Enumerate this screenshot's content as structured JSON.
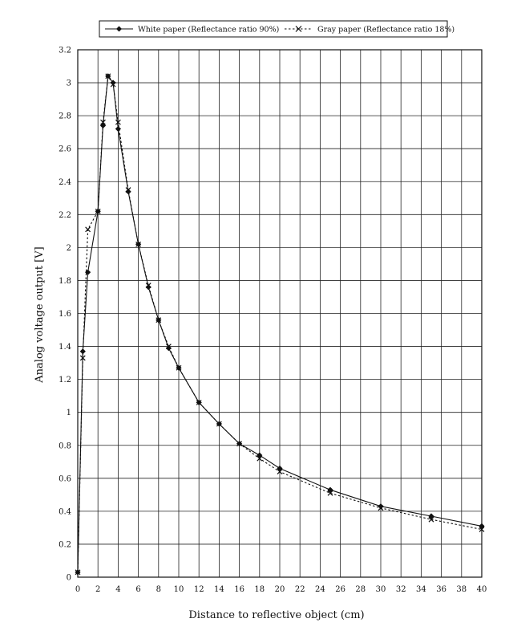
{
  "chart_data": {
    "type": "line",
    "title": "",
    "xlabel": "Distance to reflective object   (cm)",
    "ylabel": "Analog voltage output [V]",
    "xlim": [
      0,
      40
    ],
    "ylim": [
      0,
      3.2
    ],
    "x_ticks": [
      0,
      2,
      4,
      6,
      8,
      10,
      12,
      14,
      16,
      18,
      20,
      22,
      24,
      26,
      28,
      30,
      32,
      34,
      36,
      38,
      40
    ],
    "y_ticks": [
      0,
      0.2,
      0.4,
      0.6,
      0.8,
      1,
      1.2,
      1.4,
      1.6,
      1.8,
      2,
      2.2,
      2.4,
      2.6,
      2.8,
      3,
      3.2
    ],
    "grid": true,
    "legend_position": "top",
    "series": [
      {
        "name": "White paper (Reflectance ratio 90%)",
        "marker": "diamond",
        "line_style": "solid",
        "color": "#111111",
        "x": [
          0,
          0.5,
          1,
          2,
          2.5,
          3,
          3.5,
          4,
          5,
          6,
          7,
          8,
          9,
          10,
          12,
          14,
          16,
          18,
          20,
          25,
          30,
          35,
          40
        ],
        "y": [
          0.03,
          1.37,
          1.85,
          2.22,
          2.74,
          3.04,
          3.0,
          2.72,
          2.34,
          2.02,
          1.76,
          1.56,
          1.39,
          1.27,
          1.06,
          0.93,
          0.81,
          0.74,
          0.66,
          0.53,
          0.43,
          0.37,
          0.31
        ]
      },
      {
        "name": "Gray paper  (Reflectance ratio 18%)",
        "marker": "x",
        "line_style": "dashed",
        "color": "#111111",
        "x": [
          0,
          0.5,
          1,
          2,
          2.5,
          3,
          3.5,
          4,
          5,
          6,
          7,
          8,
          9,
          10,
          12,
          14,
          16,
          18,
          20,
          25,
          30,
          35,
          40
        ],
        "y": [
          0.03,
          1.33,
          2.11,
          2.22,
          2.76,
          3.04,
          2.99,
          2.76,
          2.35,
          2.02,
          1.77,
          1.56,
          1.4,
          1.27,
          1.06,
          0.93,
          0.81,
          0.72,
          0.64,
          0.51,
          0.42,
          0.35,
          0.29
        ]
      }
    ]
  }
}
